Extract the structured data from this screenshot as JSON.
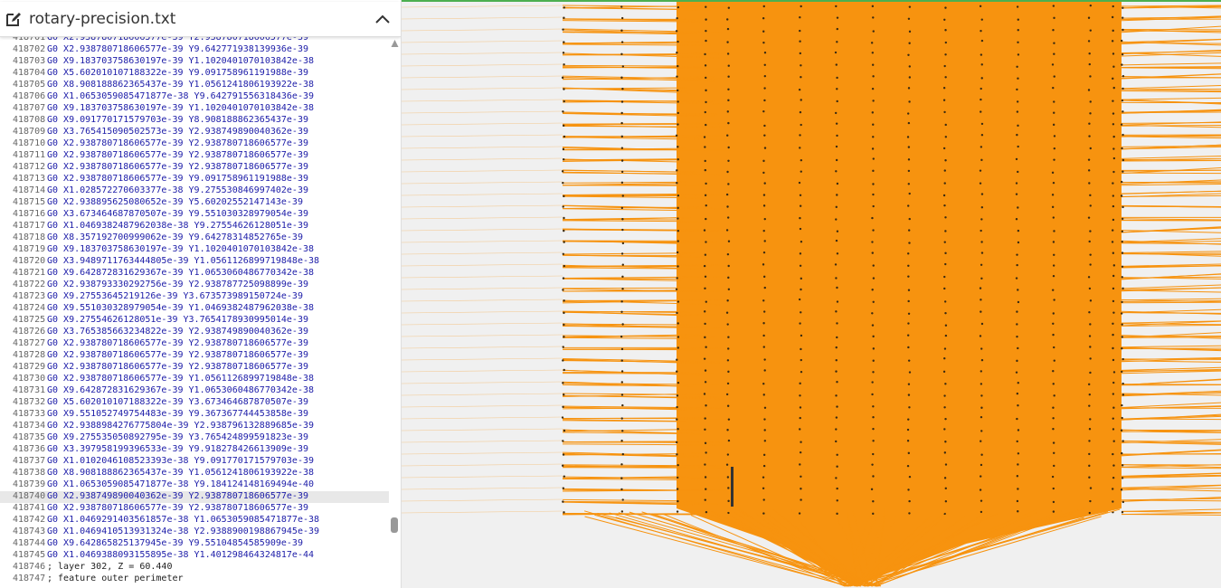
{
  "header": {
    "title": "rotary-precision.txt"
  },
  "lines": [
    [
      "418701",
      "G0 X2.938780718606577e-39 Y2.938780718606577e-39"
    ],
    [
      "418702",
      "G0 X2.938780718606577e-39 Y9.642771938139936e-39"
    ],
    [
      "418703",
      "G0 X9.183703758630197e-39 Y1.1020401070103842e-38"
    ],
    [
      "418704",
      "G0 X5.602010107188322e-39 Y9.091758961191988e-39"
    ],
    [
      "418705",
      "G0 X8.908188862365437e-39 Y1.0561241806193922e-38"
    ],
    [
      "418706",
      "G0 X1.0653059085471877e-38 Y9.642791556318436e-39"
    ],
    [
      "418707",
      "G0 X9.183703758630197e-39 Y1.1020401070103842e-38"
    ],
    [
      "418708",
      "G0 X9.091770171579703e-39 Y8.908188862365437e-39"
    ],
    [
      "418709",
      "G0 X3.765415090502573e-39 Y2.938749890040362e-39"
    ],
    [
      "418710",
      "G0 X2.938780718606577e-39 Y2.938780718606577e-39"
    ],
    [
      "418711",
      "G0 X2.938780718606577e-39 Y2.938780718606577e-39"
    ],
    [
      "418712",
      "G0 X2.938780718606577e-39 Y2.938780718606577e-39"
    ],
    [
      "418713",
      "G0 X2.938780718606577e-39 Y9.091758961191988e-39"
    ],
    [
      "418714",
      "G0 X1.028572270603377e-38 Y9.275530846997402e-39"
    ],
    [
      "418715",
      "G0 X2.938895625080652e-39 Y5.60202552147143e-39"
    ],
    [
      "418716",
      "G0 X3.673464687870507e-39 Y9.551030328979054e-39"
    ],
    [
      "418717",
      "G0 X1.0469382487962038e-38 Y9.27554626128051e-39"
    ],
    [
      "418718",
      "G0 X8.357192700999062e-39 Y9.64278314852765e-39"
    ],
    [
      "418719",
      "G0 X9.183703758630197e-39 Y1.1020401070103842e-38"
    ],
    [
      "418720",
      "G0 X3.9489711763444805e-39 Y1.0561126899719848e-38"
    ],
    [
      "418721",
      "G0 X9.642872831629367e-39 Y1.0653060486770342e-38"
    ],
    [
      "418722",
      "G0 X2.938793330292756e-39 Y2.938787725098899e-39"
    ],
    [
      "418723",
      "G0 X9.27553645219126e-39 Y3.673573989150724e-39"
    ],
    [
      "418724",
      "G0 X9.551030328979054e-39 Y1.0469382487962038e-38"
    ],
    [
      "418725",
      "G0 X9.27554626128051e-39 Y3.7654178930995014e-39"
    ],
    [
      "418726",
      "G0 X3.765385663234822e-39 Y2.938749890040362e-39"
    ],
    [
      "418727",
      "G0 X2.938780718606577e-39 Y2.938780718606577e-39"
    ],
    [
      "418728",
      "G0 X2.938780718606577e-39 Y2.938780718606577e-39"
    ],
    [
      "418729",
      "G0 X2.938780718606577e-39 Y2.938780718606577e-39"
    ],
    [
      "418730",
      "G0 X2.938780718606577e-39 Y1.0561126899719848e-38"
    ],
    [
      "418731",
      "G0 X9.642872831629367e-39 Y1.0653060486770342e-38"
    ],
    [
      "418732",
      "G0 X5.602010107188322e-39 Y3.673464687870507e-39"
    ],
    [
      "418733",
      "G0 X9.551052749754483e-39 Y9.367367744453858e-39"
    ],
    [
      "418734",
      "G0 X2.9388984276775804e-39 Y2.938796132889685e-39"
    ],
    [
      "418735",
      "G0 X9.275535050892795e-39 Y3.765424899591823e-39"
    ],
    [
      "418736",
      "G0 X3.397958199396533e-39 Y9.918278426613909e-39"
    ],
    [
      "418737",
      "G0 X1.0102046108523393e-38 Y9.091770171579703e-39"
    ],
    [
      "418738",
      "G0 X8.908188862365437e-39 Y1.0561241806193922e-38"
    ],
    [
      "418739",
      "G0 X1.0653059085471877e-38 Y9.184124148169494e-40"
    ],
    [
      "418740",
      "G0 X2.938749890040362e-39 Y2.938780718606577e-39"
    ],
    [
      "418741",
      "G0 X2.938780718606577e-39 Y2.938780718606577e-39"
    ],
    [
      "418742",
      "G0 X1.0469291403561857e-38 Y1.0653059085471877e-38"
    ],
    [
      "418743",
      "G0 X1.0469410513931324e-38 Y2.9388900198867945e-39"
    ],
    [
      "418744",
      "G0 X9.642865825137945e-39 Y9.55104854585909e-39"
    ],
    [
      "418745",
      "G0 X1.0469388093155895e-38 Y1.401298464324817e-44"
    ],
    [
      "418746",
      "; layer 302, Z = 60.440"
    ],
    [
      "418747",
      "; feature outer perimeter"
    ]
  ]
}
